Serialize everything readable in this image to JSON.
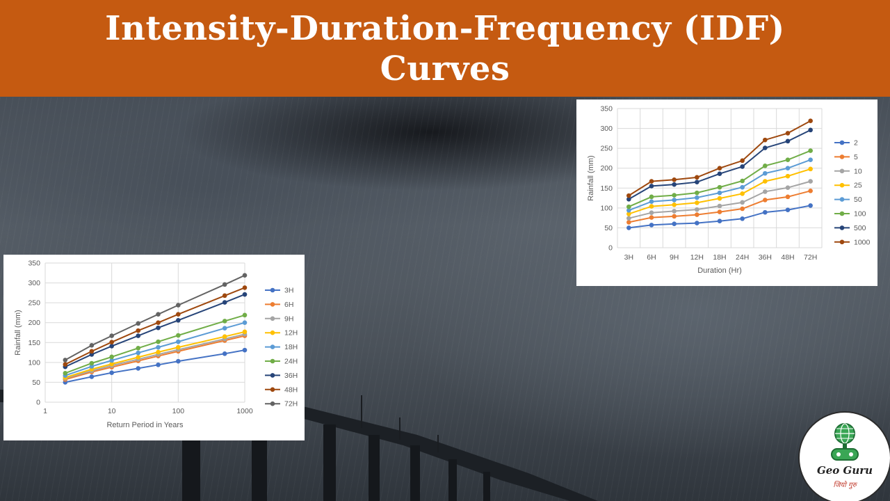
{
  "header": {
    "title_line1": "Intensity-Duration-Frequency (IDF)",
    "title_line2": "Curves",
    "background_color": "#c55a11"
  },
  "logo": {
    "name": "Geo Guru",
    "tagline": "जियो गुरु",
    "icon": "globe-gamepad-icon"
  },
  "chart_data": [
    {
      "type": "line",
      "id": "left",
      "xlabel": "Return Period in Years",
      "ylabel": "Rainfall (mm)",
      "x_scale": "log",
      "xlim": [
        1,
        1000
      ],
      "ylim": [
        0,
        350
      ],
      "x_ticks": [
        1,
        10,
        100,
        1000
      ],
      "x_tick_labels": [
        "1",
        "10",
        "100",
        "1000"
      ],
      "y_ticks": [
        0,
        50,
        100,
        150,
        200,
        250,
        300,
        350
      ],
      "y_tick_labels": [
        "0",
        "50",
        "100",
        "150",
        "200",
        "250",
        "300",
        "350"
      ],
      "grid": true,
      "legend": "right",
      "x": [
        2,
        5,
        10,
        25,
        50,
        100,
        500,
        1000
      ],
      "series": [
        {
          "name": "3H",
          "color": "#4472c4",
          "values": [
            50,
            64,
            74,
            85,
            94,
            103,
            122,
            131
          ]
        },
        {
          "name": "6H",
          "color": "#ed7d31",
          "values": [
            57,
            76,
            88,
            104,
            116,
            128,
            155,
            167
          ]
        },
        {
          "name": "9H",
          "color": "#a5a5a5",
          "values": [
            60,
            79,
            92,
            108,
            120,
            132,
            159,
            171
          ]
        },
        {
          "name": "12H",
          "color": "#ffc000",
          "values": [
            62,
            83,
            96,
            113,
            126,
            138,
            165,
            177
          ]
        },
        {
          "name": "18H",
          "color": "#5b9bd5",
          "values": [
            67,
            90,
            105,
            124,
            138,
            152,
            186,
            200
          ]
        },
        {
          "name": "24H",
          "color": "#70ad47",
          "values": [
            73,
            98,
            114,
            136,
            152,
            168,
            204,
            219
          ]
        },
        {
          "name": "36H",
          "color": "#264478",
          "values": [
            89,
            120,
            141,
            167,
            187,
            206,
            251,
            271
          ]
        },
        {
          "name": "48H",
          "color": "#9e480e",
          "values": [
            95,
            128,
            151,
            180,
            200,
            221,
            268,
            288
          ]
        },
        {
          "name": "72H",
          "color": "#636363",
          "values": [
            106,
            143,
            167,
            198,
            221,
            244,
            296,
            319
          ]
        }
      ]
    },
    {
      "type": "line",
      "id": "right",
      "xlabel": "Duration (Hr)",
      "ylabel": "Rainfall (mm)",
      "categories": [
        "3H",
        "6H",
        "9H",
        "12H",
        "18H",
        "24H",
        "36H",
        "48H",
        "72H"
      ],
      "ylim": [
        0,
        350
      ],
      "y_ticks": [
        0,
        50,
        100,
        150,
        200,
        250,
        300,
        350
      ],
      "y_tick_labels": [
        "0",
        "50",
        "100",
        "150",
        "200",
        "250",
        "300",
        "350"
      ],
      "grid": true,
      "legend": "right",
      "series": [
        {
          "name": "2",
          "color": "#4472c4",
          "values": [
            50,
            57,
            60,
            62,
            67,
            73,
            89,
            95,
            106
          ]
        },
        {
          "name": "5",
          "color": "#ed7d31",
          "values": [
            64,
            76,
            79,
            83,
            90,
            98,
            120,
            128,
            143
          ]
        },
        {
          "name": "10",
          "color": "#a5a5a5",
          "values": [
            74,
            88,
            92,
            96,
            105,
            114,
            141,
            151,
            167
          ]
        },
        {
          "name": "25",
          "color": "#ffc000",
          "values": [
            85,
            104,
            108,
            113,
            124,
            136,
            167,
            180,
            198
          ]
        },
        {
          "name": "50",
          "color": "#5b9bd5",
          "values": [
            94,
            116,
            120,
            126,
            138,
            152,
            187,
            200,
            221
          ]
        },
        {
          "name": "100",
          "color": "#70ad47",
          "values": [
            103,
            128,
            132,
            138,
            152,
            168,
            206,
            221,
            244
          ]
        },
        {
          "name": "500",
          "color": "#264478",
          "values": [
            122,
            155,
            159,
            165,
            186,
            204,
            251,
            268,
            296
          ]
        },
        {
          "name": "1000",
          "color": "#9e480e",
          "values": [
            131,
            167,
            171,
            177,
            200,
            219,
            271,
            288,
            319
          ]
        }
      ]
    }
  ]
}
